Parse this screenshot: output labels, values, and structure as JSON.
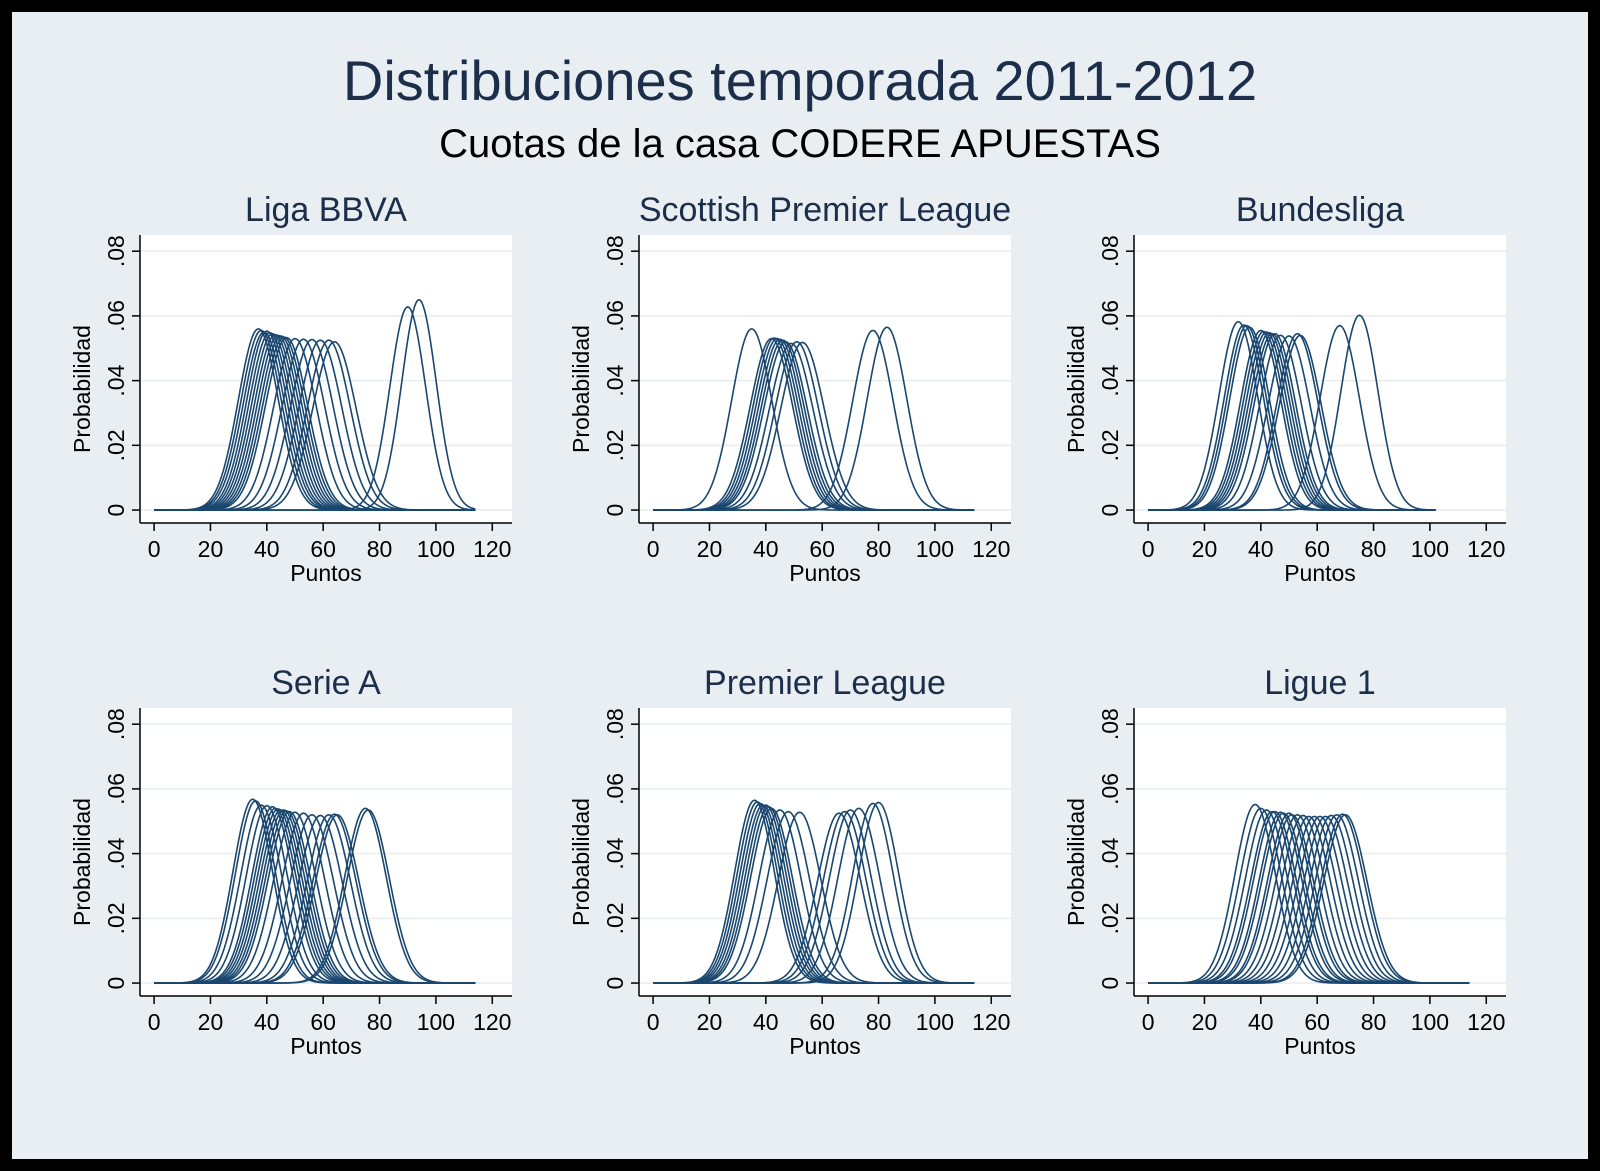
{
  "figure": {
    "title": "Distribuciones temporada 2011-2012",
    "subtitle": "Cuotas de la casa CODERE APUESTAS"
  },
  "colors": {
    "frame_background": "#e8eef2",
    "plot_background": "#ffffff",
    "curve": "#1a476f",
    "title": "#1c2e4a",
    "gridline": "#e6ecf0"
  },
  "chart_data": [
    {
      "type": "line",
      "title": "Liga BBVA",
      "xlabel": "Puntos",
      "ylabel": "Probabilidad",
      "xlim": [
        -5,
        127
      ],
      "ylim": [
        -0.004,
        0.085
      ],
      "xticks": [
        0,
        20,
        40,
        60,
        80,
        100,
        120
      ],
      "yticks": [
        0,
        0.02,
        0.04,
        0.06,
        0.08
      ],
      "ytick_labels": [
        "0",
        ".02",
        ".04",
        ".06",
        ".08"
      ],
      "grid": true,
      "x_range": [
        0,
        114
      ],
      "series_description": "normal-shaped probability curves, one per team",
      "curves": [
        {
          "mean": 37,
          "peak": 0.056
        },
        {
          "mean": 38,
          "peak": 0.0555
        },
        {
          "mean": 39,
          "peak": 0.055
        },
        {
          "mean": 40,
          "peak": 0.0553
        },
        {
          "mean": 41,
          "peak": 0.0548
        },
        {
          "mean": 42,
          "peak": 0.0545
        },
        {
          "mean": 43,
          "peak": 0.0542
        },
        {
          "mean": 44,
          "peak": 0.054
        },
        {
          "mean": 45,
          "peak": 0.0538
        },
        {
          "mean": 46,
          "peak": 0.0535
        },
        {
          "mean": 47,
          "peak": 0.0533
        },
        {
          "mean": 50,
          "peak": 0.053
        },
        {
          "mean": 53,
          "peak": 0.0528
        },
        {
          "mean": 56,
          "peak": 0.0527
        },
        {
          "mean": 59,
          "peak": 0.0525
        },
        {
          "mean": 62,
          "peak": 0.0525
        },
        {
          "mean": 64,
          "peak": 0.052
        },
        {
          "mean": 90,
          "peak": 0.0628
        },
        {
          "mean": 94,
          "peak": 0.065
        }
      ]
    },
    {
      "type": "line",
      "title": "Scottish Premier League",
      "xlabel": "Puntos",
      "ylabel": "Probabilidad",
      "xlim": [
        -5,
        127
      ],
      "ylim": [
        -0.004,
        0.085
      ],
      "xticks": [
        0,
        20,
        40,
        60,
        80,
        100,
        120
      ],
      "yticks": [
        0,
        0.02,
        0.04,
        0.06,
        0.08
      ],
      "ytick_labels": [
        "0",
        ".02",
        ".04",
        ".06",
        ".08"
      ],
      "grid": true,
      "x_range": [
        0,
        114
      ],
      "series_description": "normal-shaped probability curves, one per team",
      "curves": [
        {
          "mean": 35,
          "peak": 0.056
        },
        {
          "mean": 42,
          "peak": 0.053
        },
        {
          "mean": 43,
          "peak": 0.0532
        },
        {
          "mean": 44,
          "peak": 0.053
        },
        {
          "mean": 45,
          "peak": 0.0528
        },
        {
          "mean": 46,
          "peak": 0.0525
        },
        {
          "mean": 47,
          "peak": 0.052
        },
        {
          "mean": 49,
          "peak": 0.0515
        },
        {
          "mean": 51,
          "peak": 0.052
        },
        {
          "mean": 53,
          "peak": 0.0518
        },
        {
          "mean": 78,
          "peak": 0.0555
        },
        {
          "mean": 83,
          "peak": 0.0565
        }
      ]
    },
    {
      "type": "line",
      "title": "Bundesliga",
      "xlabel": "Puntos",
      "ylabel": "Probabilidad",
      "xlim": [
        -5,
        127
      ],
      "ylim": [
        -0.004,
        0.085
      ],
      "xticks": [
        0,
        20,
        40,
        60,
        80,
        100,
        120
      ],
      "yticks": [
        0,
        0.02,
        0.04,
        0.06,
        0.08
      ],
      "ytick_labels": [
        "0",
        ".02",
        ".04",
        ".06",
        ".08"
      ],
      "grid": true,
      "x_range": [
        0,
        102
      ],
      "series_description": "normal-shaped probability curves, one per team",
      "curves": [
        {
          "mean": 32,
          "peak": 0.0582
        },
        {
          "mean": 34,
          "peak": 0.0572
        },
        {
          "mean": 35,
          "peak": 0.057
        },
        {
          "mean": 36,
          "peak": 0.0565
        },
        {
          "mean": 40,
          "peak": 0.0555
        },
        {
          "mean": 41,
          "peak": 0.0552
        },
        {
          "mean": 42,
          "peak": 0.055
        },
        {
          "mean": 43,
          "peak": 0.0548
        },
        {
          "mean": 44,
          "peak": 0.0545
        },
        {
          "mean": 45,
          "peak": 0.0545
        },
        {
          "mean": 47,
          "peak": 0.054
        },
        {
          "mean": 50,
          "peak": 0.0538
        },
        {
          "mean": 53,
          "peak": 0.0545
        },
        {
          "mean": 54,
          "peak": 0.054
        },
        {
          "mean": 68,
          "peak": 0.057
        },
        {
          "mean": 75,
          "peak": 0.0602
        }
      ]
    },
    {
      "type": "line",
      "title": "Serie A",
      "xlabel": "Puntos",
      "ylabel": "Probabilidad",
      "xlim": [
        -5,
        127
      ],
      "ylim": [
        -0.004,
        0.085
      ],
      "xticks": [
        0,
        20,
        40,
        60,
        80,
        100,
        120
      ],
      "yticks": [
        0,
        0.02,
        0.04,
        0.06,
        0.08
      ],
      "ytick_labels": [
        "0",
        ".02",
        ".04",
        ".06",
        ".08"
      ],
      "grid": true,
      "x_range": [
        0,
        114
      ],
      "series_description": "normal-shaped probability curves, one per team",
      "curves": [
        {
          "mean": 35,
          "peak": 0.0568
        },
        {
          "mean": 36,
          "peak": 0.0563
        },
        {
          "mean": 38,
          "peak": 0.055
        },
        {
          "mean": 40,
          "peak": 0.0548
        },
        {
          "mean": 42,
          "peak": 0.0545
        },
        {
          "mean": 43,
          "peak": 0.054
        },
        {
          "mean": 44,
          "peak": 0.0538
        },
        {
          "mean": 45,
          "peak": 0.0535
        },
        {
          "mean": 46,
          "peak": 0.0535
        },
        {
          "mean": 47,
          "peak": 0.0532
        },
        {
          "mean": 48,
          "peak": 0.053
        },
        {
          "mean": 50,
          "peak": 0.0528
        },
        {
          "mean": 53,
          "peak": 0.0525
        },
        {
          "mean": 56,
          "peak": 0.052
        },
        {
          "mean": 59,
          "peak": 0.0518
        },
        {
          "mean": 62,
          "peak": 0.052
        },
        {
          "mean": 64,
          "peak": 0.0522
        },
        {
          "mean": 65,
          "peak": 0.052
        },
        {
          "mean": 75,
          "peak": 0.054
        },
        {
          "mean": 76,
          "peak": 0.0535
        }
      ]
    },
    {
      "type": "line",
      "title": "Premier League",
      "xlabel": "Puntos",
      "ylabel": "Probabilidad",
      "xlim": [
        -5,
        127
      ],
      "ylim": [
        -0.004,
        0.085
      ],
      "xticks": [
        0,
        20,
        40,
        60,
        80,
        100,
        120
      ],
      "yticks": [
        0,
        0.02,
        0.04,
        0.06,
        0.08
      ],
      "ytick_labels": [
        "0",
        ".02",
        ".04",
        ".06",
        ".08"
      ],
      "grid": true,
      "x_range": [
        0,
        114
      ],
      "series_description": "normal-shaped probability curves, one per team",
      "curves": [
        {
          "mean": 36,
          "peak": 0.0565
        },
        {
          "mean": 37,
          "peak": 0.056
        },
        {
          "mean": 38,
          "peak": 0.0555
        },
        {
          "mean": 39,
          "peak": 0.055
        },
        {
          "mean": 40,
          "peak": 0.055
        },
        {
          "mean": 41,
          "peak": 0.0545
        },
        {
          "mean": 42,
          "peak": 0.054
        },
        {
          "mean": 45,
          "peak": 0.0535
        },
        {
          "mean": 48,
          "peak": 0.053
        },
        {
          "mean": 52,
          "peak": 0.0528
        },
        {
          "mean": 66,
          "peak": 0.0525
        },
        {
          "mean": 68,
          "peak": 0.053
        },
        {
          "mean": 70,
          "peak": 0.0535
        },
        {
          "mean": 73,
          "peak": 0.054
        },
        {
          "mean": 78,
          "peak": 0.0555
        },
        {
          "mean": 80,
          "peak": 0.0558
        }
      ]
    },
    {
      "type": "line",
      "title": "Ligue 1",
      "xlabel": "Puntos",
      "ylabel": "Probabilidad",
      "xlim": [
        -5,
        127
      ],
      "ylim": [
        -0.004,
        0.085
      ],
      "xticks": [
        0,
        20,
        40,
        60,
        80,
        100,
        120
      ],
      "yticks": [
        0,
        0.02,
        0.04,
        0.06,
        0.08
      ],
      "ytick_labels": [
        "0",
        ".02",
        ".04",
        ".06",
        ".08"
      ],
      "grid": true,
      "x_range": [
        0,
        114
      ],
      "series_description": "normal-shaped probability curves, one per team",
      "curves": [
        {
          "mean": 38,
          "peak": 0.0552
        },
        {
          "mean": 40,
          "peak": 0.054
        },
        {
          "mean": 42,
          "peak": 0.0535
        },
        {
          "mean": 44,
          "peak": 0.053
        },
        {
          "mean": 45,
          "peak": 0.053
        },
        {
          "mean": 47,
          "peak": 0.0528
        },
        {
          "mean": 48,
          "peak": 0.0525
        },
        {
          "mean": 50,
          "peak": 0.0525
        },
        {
          "mean": 51,
          "peak": 0.052
        },
        {
          "mean": 53,
          "peak": 0.052
        },
        {
          "mean": 55,
          "peak": 0.0518
        },
        {
          "mean": 57,
          "peak": 0.0515
        },
        {
          "mean": 59,
          "peak": 0.0515
        },
        {
          "mean": 61,
          "peak": 0.0515
        },
        {
          "mean": 63,
          "peak": 0.0515
        },
        {
          "mean": 65,
          "peak": 0.0518
        },
        {
          "mean": 67,
          "peak": 0.052
        },
        {
          "mean": 69,
          "peak": 0.0522
        },
        {
          "mean": 70,
          "peak": 0.052
        }
      ]
    }
  ]
}
